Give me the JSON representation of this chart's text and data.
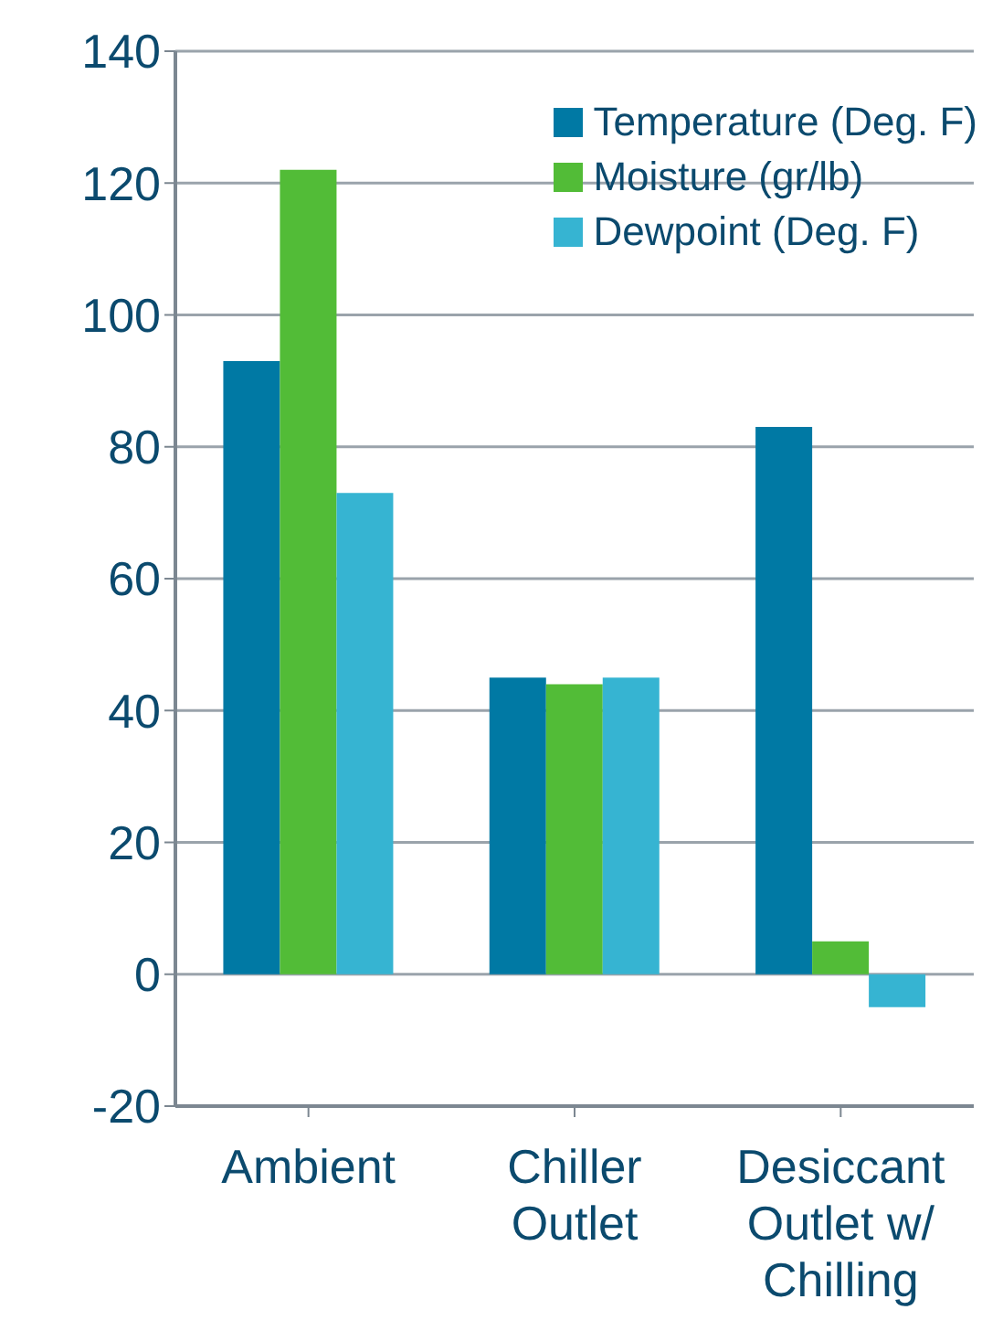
{
  "chart_data": {
    "type": "bar",
    "categories": [
      "Ambient",
      "Chiller Outlet",
      "Desiccant Outlet w/ Chilling"
    ],
    "series": [
      {
        "name": "Temperature (Deg. F)",
        "color": "#0079a4",
        "values": [
          93,
          45,
          83
        ]
      },
      {
        "name": "Moisture (gr/lb)",
        "color": "#52bc37",
        "values": [
          122,
          44,
          5
        ]
      },
      {
        "name": "Dewpoint (Deg. F)",
        "color": "#36b4d2",
        "values": [
          73,
          45,
          -5
        ]
      }
    ],
    "ylim": [
      -20,
      140
    ],
    "yticks": [
      -20,
      0,
      20,
      40,
      60,
      80,
      100,
      120,
      140
    ],
    "grid": "y",
    "legend": "top right"
  }
}
